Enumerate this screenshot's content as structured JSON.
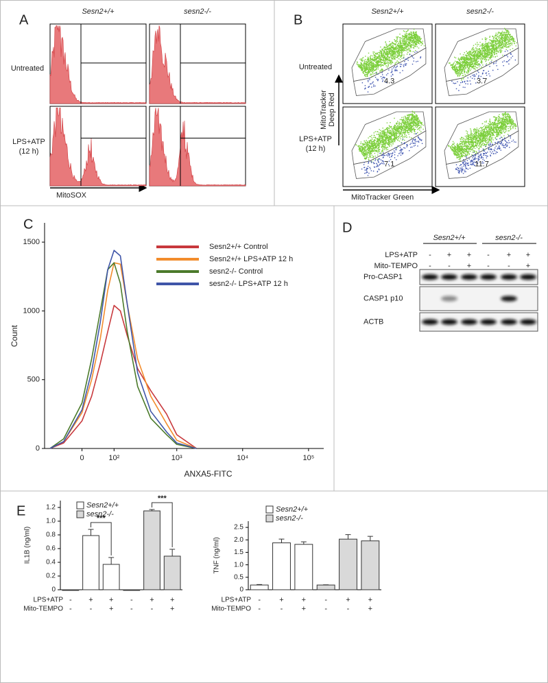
{
  "panel_a": {
    "letter": "A",
    "columns": [
      "Sesn2+/+",
      "sesn2-/-"
    ],
    "rows": [
      {
        "label": "Untreated"
      },
      {
        "label": "LPS+ATP",
        "sublabel": "(12 h)"
      }
    ],
    "x_label": "MitoSOX"
  },
  "panel_b": {
    "letter": "B",
    "columns": [
      "Sesn2+/+",
      "sesn2-/-"
    ],
    "rows": [
      {
        "label": "Untreated"
      },
      {
        "label": "LPS+ATP",
        "sublabel": "(12 h)"
      }
    ],
    "y_label": [
      "MitoTracker",
      "Deep Red"
    ],
    "x_label": "MitoTracker Green",
    "values": [
      [
        4.3,
        3.7
      ],
      [
        7.1,
        11.7
      ]
    ]
  },
  "panel_d": {
    "letter": "D",
    "groups": [
      "Sesn2+/+",
      "sesn2-/-"
    ],
    "treatments": [
      {
        "label": "LPS+ATP",
        "signs": [
          "-",
          "+",
          "+",
          "-",
          "+",
          "+"
        ]
      },
      {
        "label": "Mito-TEMPO",
        "signs": [
          "-",
          "-",
          "+",
          "-",
          "-",
          "+"
        ]
      }
    ],
    "bands": [
      "Pro-CASP1",
      "CASP1 p10",
      "ACTB"
    ]
  },
  "chart_data": [
    {
      "type": "line",
      "letter": "C",
      "x_label": "ANXA5-FITC",
      "y_label": "Count",
      "x_scale": "asinh",
      "xlim": [
        -125,
        170000
      ],
      "xticks": [
        0,
        {
          "value": 100,
          "label": "10²"
        },
        {
          "value": 1000,
          "label": "10³"
        },
        {
          "value": 10000,
          "label": "10⁴"
        },
        {
          "value": 100000,
          "label": "10⁵"
        }
      ],
      "ylim": [
        0,
        1640
      ],
      "yticks": [
        0,
        500,
        1000,
        1500
      ],
      "x": [
        -100,
        -50,
        0,
        25,
        50,
        75,
        100,
        130,
        170,
        250,
        400,
        700,
        1000,
        2000
      ],
      "series": [
        {
          "name": "Sesn2+/+ Control",
          "color": "#c8383c",
          "values": [
            0,
            40,
            200,
            380,
            620,
            850,
            1040,
            1000,
            820,
            580,
            420,
            250,
            100,
            0
          ]
        },
        {
          "name": "Sesn2+/+ LPS+ATP 12 h",
          "color": "#f28c2c",
          "values": [
            0,
            50,
            260,
            500,
            800,
            1150,
            1350,
            1340,
            1050,
            650,
            380,
            180,
            60,
            0
          ]
        },
        {
          "name": "sesn2-/- Control",
          "color": "#4b7a2b",
          "values": [
            0,
            70,
            330,
            650,
            1000,
            1300,
            1350,
            1200,
            850,
            450,
            220,
            100,
            30,
            0
          ]
        },
        {
          "name": "sesn2-/- LPS+ATP 12 h",
          "color": "#3f55a8",
          "values": [
            0,
            50,
            280,
            560,
            920,
            1300,
            1440,
            1400,
            1050,
            550,
            270,
            120,
            40,
            0
          ]
        }
      ]
    },
    {
      "type": "bar",
      "letter": "E",
      "y_label": "IL1B (ng/ml)",
      "ylim": [
        0,
        1.3
      ],
      "yticks": [
        0,
        0.2,
        0.4,
        0.6,
        0.8,
        {
          "value": 1,
          "label": "1.0"
        },
        1.2
      ],
      "categories": [
        null,
        null,
        null,
        null,
        null,
        null
      ],
      "series": [
        {
          "name": "Sesn2+/+",
          "color": "#ffffff",
          "values": [
            0,
            0.79,
            0.37,
            null,
            null,
            null
          ],
          "errors": [
            0,
            0.09,
            0.1,
            null,
            null,
            null
          ]
        },
        {
          "name": "sesn2-/-",
          "color": "#d9d9d9",
          "values": [
            null,
            null,
            null,
            0,
            1.15,
            0.49
          ],
          "errors": [
            null,
            null,
            null,
            0,
            0.02,
            0.1
          ]
        }
      ],
      "treatments": [
        {
          "label": "LPS+ATP",
          "signs": [
            "-",
            "+",
            "+",
            "-",
            "+",
            "+"
          ]
        },
        {
          "label": "Mito-TEMPO",
          "signs": [
            "-",
            "-",
            "+",
            "-",
            "-",
            "+"
          ]
        }
      ],
      "brackets": [
        {
          "label": "***",
          "bars": [
            1,
            2
          ]
        },
        {
          "label": "***",
          "bars": [
            4,
            5
          ]
        }
      ]
    },
    {
      "type": "bar",
      "y_label": "TNF (ng/ml)",
      "ylim": [
        0,
        2.75
      ],
      "yticks": [
        0,
        0.5,
        {
          "value": 1,
          "label": "1.0"
        },
        1.5,
        {
          "value": 2,
          "label": "2.0"
        },
        2.5
      ],
      "categories": [
        null,
        null,
        null,
        null,
        null,
        null
      ],
      "series": [
        {
          "name": "Sesn2+/+",
          "color": "#ffffff",
          "values": [
            0.19,
            1.88,
            1.82,
            null,
            null,
            null
          ],
          "errors": [
            0.02,
            0.15,
            0.1,
            null,
            null,
            null
          ]
        },
        {
          "name": "sesn2-/-",
          "color": "#d9d9d9",
          "values": [
            null,
            null,
            null,
            0.19,
            2.03,
            1.96
          ],
          "errors": [
            null,
            null,
            null,
            0.01,
            0.18,
            0.18
          ]
        }
      ],
      "treatments": [
        {
          "label": "LPS+ATP",
          "signs": [
            "-",
            "+",
            "+",
            "-",
            "+",
            "+"
          ]
        },
        {
          "label": "Mito-TEMPO",
          "signs": [
            "-",
            "-",
            "+",
            "-",
            "-",
            "+"
          ]
        }
      ]
    }
  ]
}
